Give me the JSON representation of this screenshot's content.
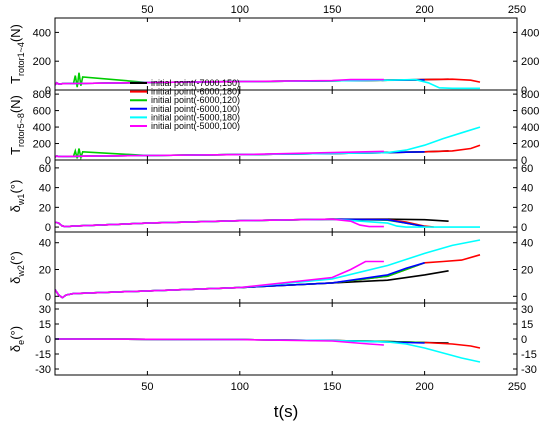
{
  "chart_data": {
    "type": "line",
    "xlabel": "t(s)",
    "xlim": [
      0,
      250
    ],
    "xticks": [
      50,
      100,
      150,
      200,
      250
    ],
    "grid": false,
    "legend": {
      "placement": "inside second panel, left of centre",
      "entries": [
        {
          "label": "initial point(-7000,150)",
          "color": "#000000"
        },
        {
          "label": "initial point(-6000,180)",
          "color": "#ff0000"
        },
        {
          "label": "initial point(-6000,120)",
          "color": "#00cc00"
        },
        {
          "label": "initial point(-6000,100)",
          "color": "#0000ff"
        },
        {
          "label": "initial point(-5000,180)",
          "color": "#00ffff"
        },
        {
          "label": "initial point(-5000,100)",
          "color": "#ff00ff"
        }
      ]
    },
    "panels": [
      {
        "ylabel": "T_rotor1~4(N)",
        "ylabel_main": "T",
        "ylabel_sub": "rotor1~4",
        "ylabel_suffix": "(N)",
        "ylim": [
          0,
          500
        ],
        "yticks": [
          0,
          200,
          400
        ],
        "series": [
          {
            "name": "initial point(-7000,150)",
            "color": "#000000",
            "x": [
              0,
              1,
              2,
              4,
              10,
              50,
              100,
              150,
              180,
              200,
              213
            ],
            "y": [
              35,
              50,
              40,
              44,
              45,
              52,
              58,
              64,
              68,
              72,
              75
            ]
          },
          {
            "name": "initial point(-6000,180)",
            "color": "#ff0000",
            "x": [
              0,
              1,
              2,
              4,
              10,
              50,
              100,
              150,
              200,
              215,
              225,
              230
            ],
            "y": [
              35,
              50,
              40,
              44,
              45,
              52,
              58,
              64,
              72,
              75,
              68,
              55
            ]
          },
          {
            "name": "initial point(-6000,120)",
            "color": "#00cc00",
            "x": [
              0,
              1,
              2,
              4,
              10,
              11,
              12,
              13,
              14,
              15,
              50,
              100,
              150,
              200
            ],
            "y": [
              35,
              50,
              40,
              44,
              45,
              100,
              20,
              120,
              30,
              90,
              52,
              58,
              64,
              70
            ]
          },
          {
            "name": "initial point(-6000,100)",
            "color": "#0000ff",
            "x": [
              0,
              1,
              2,
              4,
              10,
              50,
              100,
              150,
              180,
              200
            ],
            "y": [
              35,
              50,
              40,
              44,
              45,
              52,
              58,
              64,
              68,
              70
            ]
          },
          {
            "name": "initial point(-5000,180)",
            "color": "#00ffff",
            "x": [
              0,
              1,
              2,
              4,
              10,
              50,
              100,
              150,
              180,
              195,
              202,
              208,
              215,
              230
            ],
            "y": [
              35,
              50,
              40,
              44,
              45,
              52,
              58,
              64,
              68,
              72,
              50,
              15,
              12,
              12
            ]
          },
          {
            "name": "initial point(-5000,100)",
            "color": "#ff00ff",
            "x": [
              0,
              1,
              2,
              4,
              10,
              50,
              100,
              150,
              160,
              170,
              178
            ],
            "y": [
              35,
              50,
              40,
              44,
              45,
              52,
              58,
              66,
              72,
              72,
              72
            ]
          }
        ]
      },
      {
        "ylabel": "T_rotor5~8(N)",
        "ylabel_main": "T",
        "ylabel_sub": "rotor5~8",
        "ylabel_suffix": "(N)",
        "ylim": [
          0,
          850
        ],
        "yticks": [
          0,
          200,
          400,
          600,
          800
        ],
        "series": [
          {
            "name": "initial point(-7000,150)",
            "color": "#000000",
            "x": [
              0,
              1,
              2,
              4,
              10,
              50,
              100,
              150,
              180,
              200,
              213
            ],
            "y": [
              35,
              50,
              40,
              44,
              45,
              55,
              65,
              80,
              90,
              100,
              110
            ]
          },
          {
            "name": "initial point(-6000,180)",
            "color": "#ff0000",
            "x": [
              0,
              1,
              2,
              4,
              10,
              50,
              100,
              150,
              180,
              200,
              215,
              225,
              230
            ],
            "y": [
              35,
              50,
              40,
              44,
              45,
              55,
              65,
              80,
              90,
              100,
              110,
              140,
              180
            ]
          },
          {
            "name": "initial point(-6000,120)",
            "color": "#00cc00",
            "x": [
              0,
              1,
              2,
              4,
              10,
              11,
              12,
              13,
              14,
              15,
              50,
              100,
              150,
              200
            ],
            "y": [
              35,
              50,
              40,
              44,
              45,
              110,
              20,
              140,
              30,
              100,
              55,
              65,
              80,
              100
            ]
          },
          {
            "name": "initial point(-6000,100)",
            "color": "#0000ff",
            "x": [
              0,
              1,
              2,
              4,
              10,
              50,
              100,
              150,
              180,
              200
            ],
            "y": [
              35,
              50,
              40,
              44,
              45,
              55,
              65,
              80,
              90,
              100
            ]
          },
          {
            "name": "initial point(-5000,180)",
            "color": "#00ffff",
            "x": [
              0,
              1,
              2,
              4,
              10,
              50,
              100,
              150,
              180,
              190,
              200,
              210,
              220,
              230
            ],
            "y": [
              35,
              50,
              40,
              44,
              45,
              55,
              65,
              80,
              90,
              120,
              180,
              260,
              330,
              400
            ]
          },
          {
            "name": "initial point(-5000,100)",
            "color": "#ff00ff",
            "x": [
              0,
              1,
              2,
              4,
              10,
              50,
              100,
              150,
              178
            ],
            "y": [
              35,
              50,
              40,
              44,
              45,
              55,
              65,
              90,
              105
            ]
          }
        ]
      },
      {
        "ylabel": "δ_w1(°)",
        "ylabel_main": "δ",
        "ylabel_sub": "w1",
        "ylabel_suffix": "(°)",
        "ylim": [
          -5,
          68
        ],
        "yticks": [
          0,
          20,
          40,
          60
        ],
        "series": [
          {
            "name": "initial point(-7000,150)",
            "color": "#000000",
            "x": [
              0,
              2,
              4,
              6,
              10,
              50,
              100,
              150,
              180,
              200,
              213
            ],
            "y": [
              5,
              4,
              1,
              0.5,
              1,
              4,
              6.5,
              8,
              8,
              7.5,
              6
            ]
          },
          {
            "name": "initial point(-6000,180)",
            "color": "#ff0000",
            "x": [
              0,
              2,
              4,
              6,
              10,
              50,
              100,
              150,
              180,
              190,
              200,
              205
            ],
            "y": [
              5,
              4,
              1,
              0.5,
              1,
              4,
              6.5,
              8,
              7.5,
              5,
              1,
              0
            ]
          },
          {
            "name": "initial point(-6000,120)",
            "color": "#00cc00",
            "x": [
              0,
              2,
              4,
              6,
              10,
              50,
              100,
              150,
              180,
              190,
              200
            ],
            "y": [
              5,
              4,
              1,
              0.5,
              1,
              4,
              6.5,
              8,
              7,
              4,
              0.5
            ]
          },
          {
            "name": "initial point(-6000,100)",
            "color": "#0000ff",
            "x": [
              0,
              2,
              4,
              6,
              10,
              50,
              100,
              150,
              180,
              190,
              200
            ],
            "y": [
              5,
              4,
              1,
              0.5,
              1,
              4,
              6.5,
              8,
              7.5,
              4,
              0.5
            ]
          },
          {
            "name": "initial point(-5000,180)",
            "color": "#00ffff",
            "x": [
              0,
              2,
              4,
              6,
              10,
              50,
              100,
              150,
              180,
              185,
              190,
              200,
              230
            ],
            "y": [
              5,
              4,
              1,
              0.5,
              1,
              4,
              6.5,
              8,
              4,
              1,
              0,
              0,
              0
            ]
          },
          {
            "name": "initial point(-5000,100)",
            "color": "#ff00ff",
            "x": [
              0,
              2,
              4,
              6,
              10,
              50,
              100,
              150,
              160,
              165,
              170,
              178
            ],
            "y": [
              5,
              4,
              1,
              0.5,
              1,
              4,
              6.5,
              8,
              6,
              2,
              0.5,
              0.5
            ]
          }
        ]
      },
      {
        "ylabel": "δ_w2(°)",
        "ylabel_main": "δ",
        "ylabel_sub": "w2",
        "ylabel_suffix": "(°)",
        "ylim": [
          -5,
          48
        ],
        "yticks": [
          0,
          20,
          40
        ],
        "series": [
          {
            "name": "initial point(-7000,150)",
            "color": "#000000",
            "x": [
              0,
              2,
              4,
              6,
              10,
              50,
              100,
              150,
              180,
              200,
              213
            ],
            "y": [
              5,
              1,
              -1,
              1,
              2,
              4,
              6.5,
              10,
              12,
              16,
              19
            ]
          },
          {
            "name": "initial point(-6000,180)",
            "color": "#ff0000",
            "x": [
              0,
              2,
              4,
              6,
              10,
              50,
              100,
              150,
              180,
              190,
              200,
              210,
              220,
              230
            ],
            "y": [
              5,
              1,
              -1,
              1,
              2,
              4,
              6.5,
              10,
              15,
              20,
              25,
              26,
              27,
              31
            ]
          },
          {
            "name": "initial point(-6000,120)",
            "color": "#00cc00",
            "x": [
              0,
              2,
              4,
              6,
              10,
              50,
              100,
              150,
              180,
              190,
              200
            ],
            "y": [
              5,
              1,
              -1,
              1,
              2,
              4,
              6.5,
              10,
              15,
              20,
              25
            ]
          },
          {
            "name": "initial point(-6000,100)",
            "color": "#0000ff",
            "x": [
              0,
              2,
              4,
              6,
              10,
              50,
              100,
              150,
              180,
              190,
              200
            ],
            "y": [
              5,
              1,
              -1,
              1,
              2,
              4,
              6.5,
              10,
              16,
              21,
              25
            ]
          },
          {
            "name": "initial point(-5000,180)",
            "color": "#00ffff",
            "x": [
              0,
              2,
              4,
              6,
              10,
              50,
              100,
              150,
              180,
              200,
              215,
              230
            ],
            "y": [
              5,
              1,
              -1,
              1,
              2,
              4,
              6.5,
              13,
              23,
              32,
              38,
              42
            ]
          },
          {
            "name": "initial point(-5000,100)",
            "color": "#ff00ff",
            "x": [
              0,
              2,
              4,
              6,
              10,
              50,
              100,
              150,
              160,
              168,
              178
            ],
            "y": [
              5,
              1,
              -1,
              1,
              2,
              4,
              6.5,
              14,
              20,
              26,
              26
            ]
          }
        ]
      },
      {
        "ylabel": "δ_e(°)",
        "ylabel_main": "δ",
        "ylabel_sub": "e",
        "ylabel_suffix": "(°)",
        "ylim": [
          -36,
          36
        ],
        "yticks": [
          -30,
          -15,
          0,
          15,
          30
        ],
        "series": [
          {
            "name": "initial point(-7000,150)",
            "color": "#000000",
            "x": [
              0,
              50,
              100,
              150,
              180,
              200,
              213
            ],
            "y": [
              0,
              -0.3,
              -0.6,
              -1.5,
              -2.5,
              -3.5,
              -4
            ]
          },
          {
            "name": "initial point(-6000,180)",
            "color": "#ff0000",
            "x": [
              0,
              50,
              100,
              150,
              180,
              200,
              215,
              225,
              230
            ],
            "y": [
              0,
              -0.3,
              -0.6,
              -1.5,
              -2.5,
              -3.5,
              -5,
              -7,
              -9
            ]
          },
          {
            "name": "initial point(-6000,120)",
            "color": "#00cc00",
            "x": [
              0,
              50,
              100,
              150,
              180,
              200
            ],
            "y": [
              0,
              -0.3,
              -0.6,
              -1.5,
              -2.5,
              -3.5
            ]
          },
          {
            "name": "initial point(-6000,100)",
            "color": "#0000ff",
            "x": [
              0,
              50,
              100,
              150,
              180,
              200
            ],
            "y": [
              0,
              -0.3,
              -0.6,
              -1.5,
              -3,
              -4
            ]
          },
          {
            "name": "initial point(-5000,180)",
            "color": "#00ffff",
            "x": [
              0,
              50,
              100,
              150,
              180,
              190,
              200,
              210,
              220,
              230
            ],
            "y": [
              0,
              -0.3,
              -0.6,
              -1.5,
              -3,
              -5,
              -9,
              -14,
              -19,
              -23
            ]
          },
          {
            "name": "initial point(-5000,100)",
            "color": "#ff00ff",
            "x": [
              0,
              50,
              100,
              150,
              160,
              170,
              178
            ],
            "y": [
              0,
              -0.3,
              -0.6,
              -2,
              -3.5,
              -5,
              -6
            ]
          }
        ]
      }
    ]
  }
}
